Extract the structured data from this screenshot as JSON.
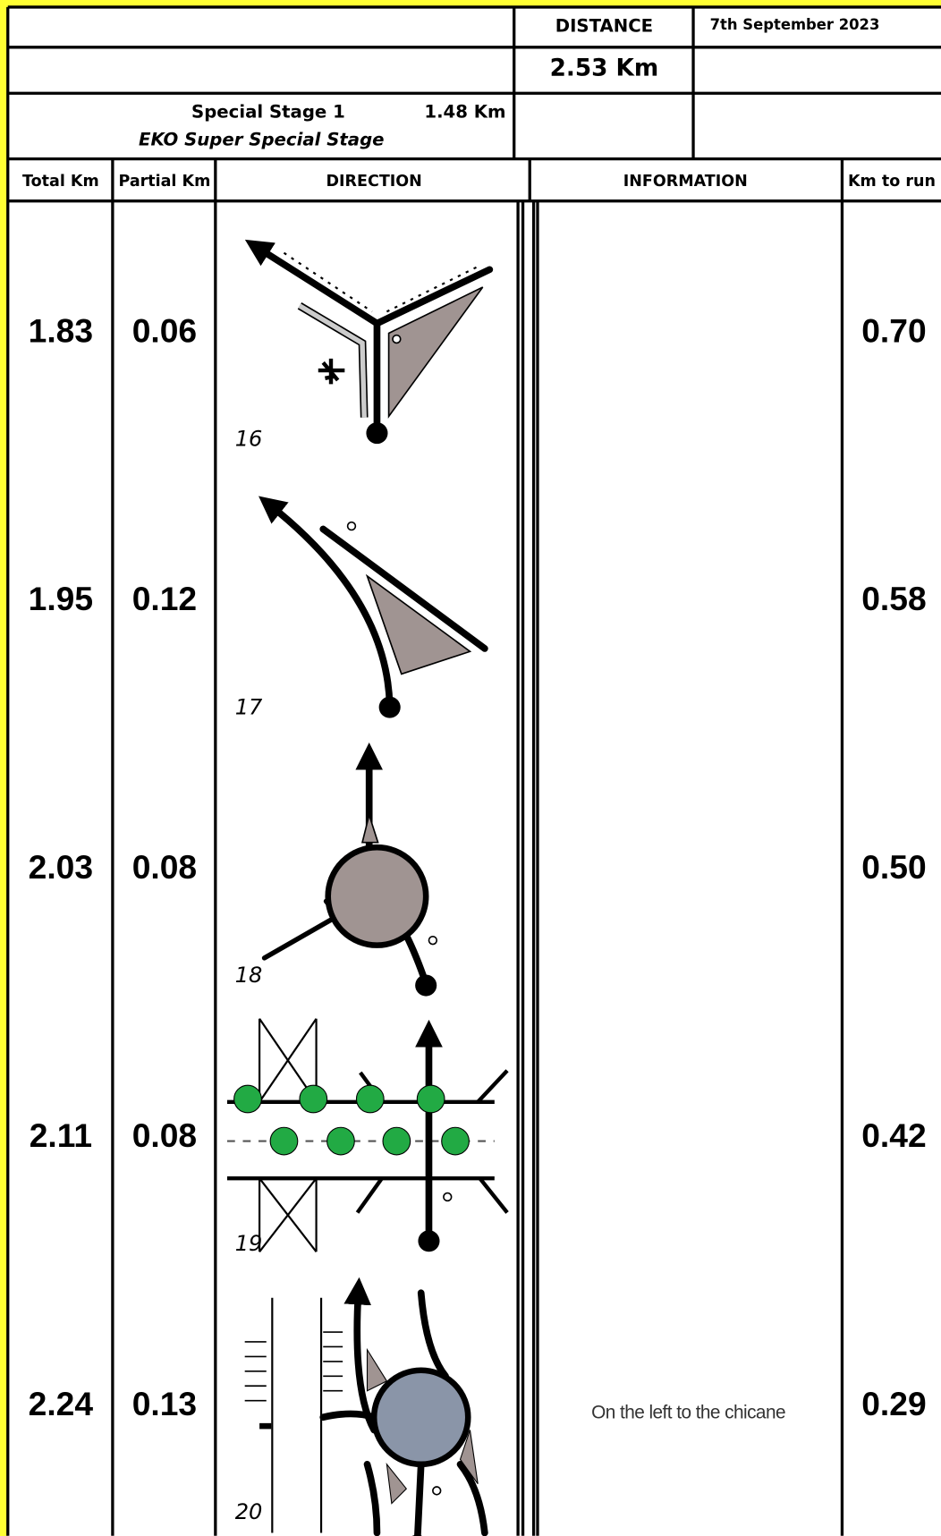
{
  "header": {
    "distance_label": "DISTANCE",
    "distance": "2.53 Km",
    "date": "7th September 2023",
    "stage": "Special Stage 1",
    "stage_length": "1.48 Km",
    "stage_name": "EKO Super Special Stage"
  },
  "columns": [
    "Total Km",
    "Partial Km",
    "DIRECTION",
    "INFORMATION",
    "Km to run"
  ],
  "rows": [
    {
      "total": "1.83",
      "partial": "0.06",
      "number": "16",
      "km_to_run": "0.70"
    },
    {
      "total": "1.95",
      "partial": "0.12",
      "number": "17",
      "km_to_run": "0.58"
    },
    {
      "total": "2.03",
      "partial": "0.08",
      "number": "18",
      "km_to_run": "0.50"
    },
    {
      "total": "2.11",
      "partial": "0.08",
      "number": "19",
      "km_to_run": "0.42"
    },
    {
      "total": "2.24",
      "partial": "0.13",
      "number": "20",
      "information": "On the left to the chicane",
      "km_to_run": "0.29"
    }
  ]
}
